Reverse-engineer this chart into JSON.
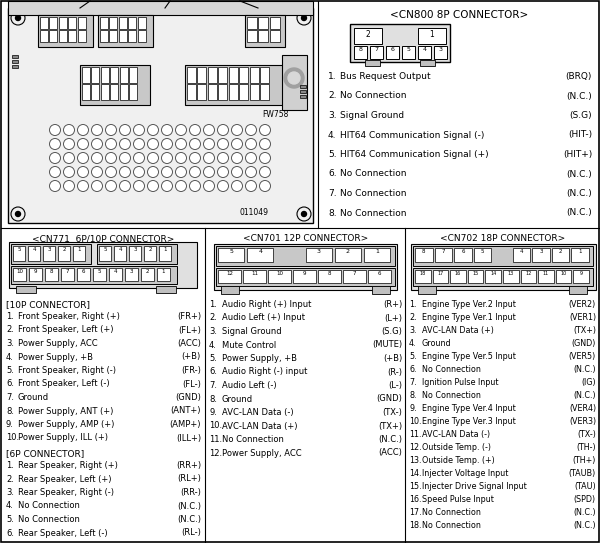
{
  "background_color": "#ffffff",
  "cn800_title": "<CN800 8P CONNECTOR>",
  "cn800_pins": [
    [
      "1.",
      "Bus Request Output",
      "(BRQ)"
    ],
    [
      "2.",
      "No Connection",
      "(N.C.)"
    ],
    [
      "3.",
      "Signal Ground",
      "(S.G)"
    ],
    [
      "4.",
      "HIT64 Communication Signal (-)",
      "(HIT-)"
    ],
    [
      "5.",
      "HIT64 Communication Signal (+)",
      "(HIT+)"
    ],
    [
      "6.",
      "No Connection",
      "(N.C.)"
    ],
    [
      "7.",
      "No Connection",
      "(N.C.)"
    ],
    [
      "8.",
      "No Connection",
      "(N.C.)"
    ]
  ],
  "cn771_title": "<CN771  6P/10P CONNECTOR>",
  "cn771_10p_header": "[10P CONNECTOR]",
  "cn771_10p_pins": [
    [
      "1.",
      "Front Speaker, Right (+)",
      "(FR+)"
    ],
    [
      "2.",
      "Front Speaker, Left (+)",
      "(FL+)"
    ],
    [
      "3.",
      "Power Supply, ACC",
      "(ACC)"
    ],
    [
      "4.",
      "Power Supply, +B",
      "(+B)"
    ],
    [
      "5.",
      "Front Speaker, Right (-)",
      "(FR-)"
    ],
    [
      "6.",
      "Front Speaker, Left (-)",
      "(FL-)"
    ],
    [
      "7.",
      "Ground",
      "(GND)"
    ],
    [
      "8.",
      "Power Supply, ANT (+)",
      "(ANT+)"
    ],
    [
      "9.",
      "Power Supply, AMP (+)",
      "(AMP+)"
    ],
    [
      "10.",
      "Power Supply, ILL (+)",
      "(ILL+)"
    ]
  ],
  "cn771_6p_header": "[6P CONNECTOR]",
  "cn771_6p_pins": [
    [
      "1.",
      "Rear Speaker, Right (+)",
      "(RR+)"
    ],
    [
      "2.",
      "Rear Speaker, Left (+)",
      "(RL+)"
    ],
    [
      "3.",
      "Rear Speaker, Right (-)",
      "(RR-)"
    ],
    [
      "4.",
      "No Connection",
      "(N.C.)"
    ],
    [
      "5.",
      "No Connection",
      "(N.C.)"
    ],
    [
      "6.",
      "Rear Speaker, Left (-)",
      "(RL-)"
    ]
  ],
  "cn701_title": "<CN701 12P CONNECTOR>",
  "cn701_pins": [
    [
      "1.",
      "Audio Right (+) Input",
      "(R+)"
    ],
    [
      "2.",
      "Audio Left (+) Input",
      "(L+)"
    ],
    [
      "3.",
      "Signal Ground",
      "(S.G)"
    ],
    [
      "4.",
      "Mute Control",
      "(MUTE)"
    ],
    [
      "5.",
      "Power Supply, +B",
      "(+B)"
    ],
    [
      "6.",
      "Audio Right (-) input",
      "(R-)"
    ],
    [
      "7.",
      "Audio Left (-)",
      "(L-)"
    ],
    [
      "8.",
      "Ground",
      "(GND)"
    ],
    [
      "9.",
      "AVC-LAN Data (-)",
      "(TX-)"
    ],
    [
      "10.",
      "AVC-LAN Data (+)",
      "(TX+)"
    ],
    [
      "11.",
      "No Connection",
      "(N.C.)"
    ],
    [
      "12.",
      "Power Supply, ACC",
      "(ACC)"
    ]
  ],
  "cn702_title": "<CN702 18P CONNECTOR>",
  "cn702_pins": [
    [
      "1.",
      "Engine Type Ver.2 Input",
      "(VER2)"
    ],
    [
      "2.",
      "Engine Type Ver.1 Input",
      "(VER1)"
    ],
    [
      "3.",
      "AVC-LAN Data (+)",
      "(TX+)"
    ],
    [
      "4.",
      "Ground",
      "(GND)"
    ],
    [
      "5.",
      "Engine Type Ver.5 Input",
      "(VER5)"
    ],
    [
      "6.",
      "No Connection",
      "(N.C.)"
    ],
    [
      "7.",
      "Ignition Pulse Input",
      "(IG)"
    ],
    [
      "8.",
      "No Connection",
      "(N.C.)"
    ],
    [
      "9.",
      "Engine Type Ver.4 Input",
      "(VER4)"
    ],
    [
      "10.",
      "Engine Type Ver.3 Input",
      "(VER3)"
    ],
    [
      "11.",
      "AVC-LAN Data (-)",
      "(TX-)"
    ],
    [
      "12.",
      "Outside Temp. (-)",
      "(TH-)"
    ],
    [
      "13.",
      "Outside Temp. (+)",
      "(TH+)"
    ],
    [
      "14.",
      "Injecter Voltage Input",
      "(TAUB)"
    ],
    [
      "15.",
      "Injecter Drive Signal Input",
      "(TAU)"
    ],
    [
      "16.",
      "Speed Pulse Input",
      "(SPD)"
    ],
    [
      "17.",
      "No Connection",
      "(N.C.)"
    ],
    [
      "18.",
      "No Connection",
      "(N.C.)"
    ]
  ]
}
